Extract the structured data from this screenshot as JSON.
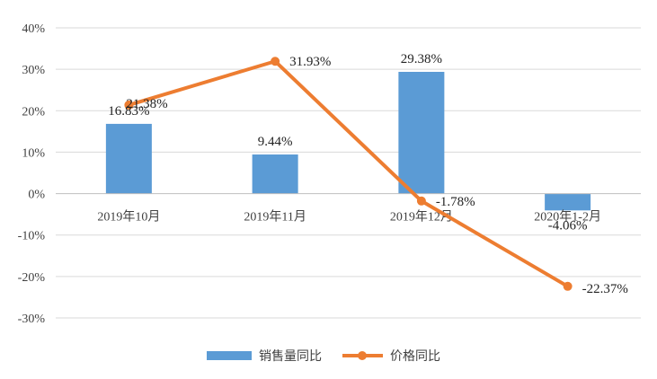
{
  "chart_data": {
    "type": "bar",
    "categories": [
      "2019年10月",
      "2019年11月",
      "2019年12月",
      "2020年1-2月"
    ],
    "series": [
      {
        "name": "销售量同比",
        "type": "bar",
        "values": [
          16.83,
          9.44,
          29.38,
          -4.06
        ],
        "labels": [
          "16.83%",
          "9.44%",
          "29.38%",
          "-4.06%"
        ],
        "color": "#5b9bd5"
      },
      {
        "name": "价格同比",
        "type": "line",
        "values": [
          21.38,
          31.93,
          -1.78,
          -22.37
        ],
        "labels": [
          "21.38%",
          "31.93%",
          "-1.78%",
          "-22.37%"
        ],
        "color": "#ed7d31"
      }
    ],
    "ylim": [
      -30,
      40
    ],
    "yticks": [
      40,
      30,
      20,
      10,
      0,
      -10,
      -20,
      -30
    ],
    "ytick_labels": [
      "40%",
      "30%",
      "20%",
      "10%",
      "0%",
      "-10%",
      "-20%",
      "-30%"
    ],
    "grid": true,
    "legend_position": "bottom",
    "title": "",
    "xlabel": "",
    "ylabel": ""
  }
}
